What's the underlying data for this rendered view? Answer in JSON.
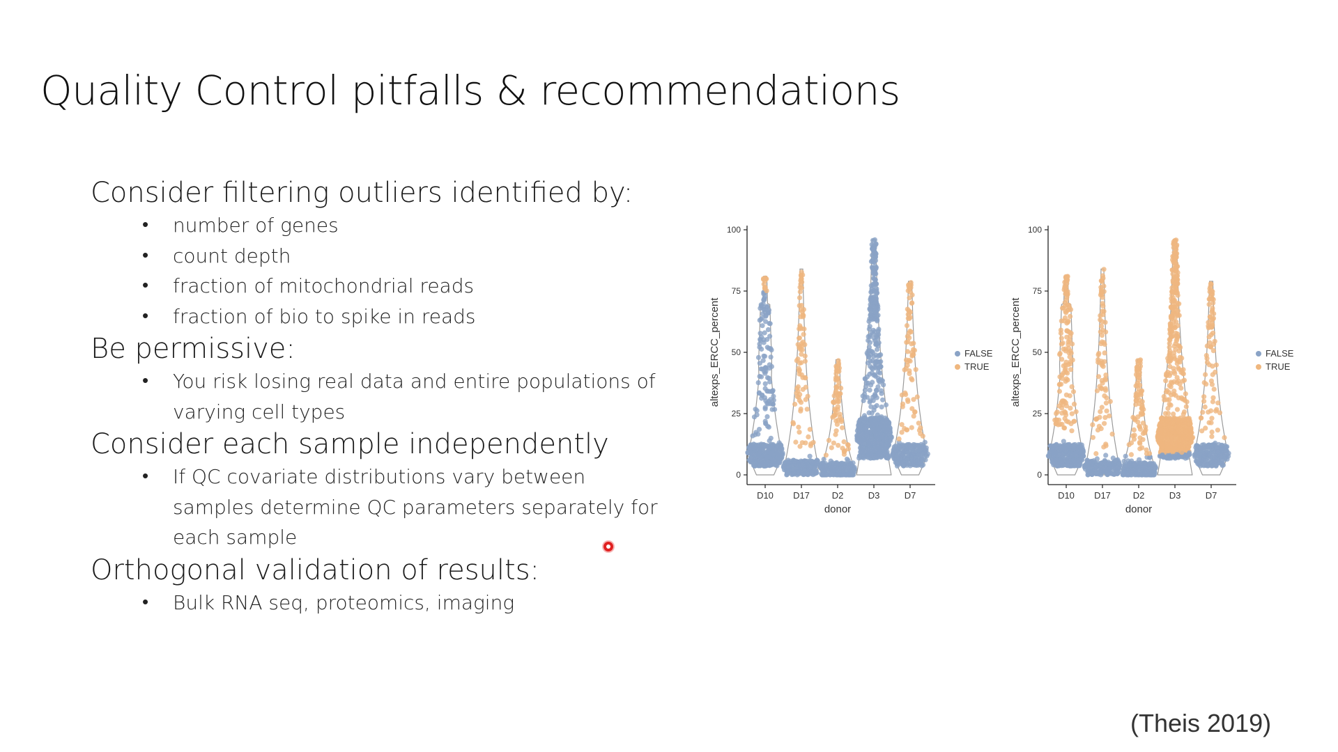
{
  "slide": {
    "title": "Quality Control pitfalls & recommendations",
    "sections": [
      {
        "heading": "Consider filtering outliers identified by:",
        "bullets": [
          "number of genes",
          "count depth",
          "fraction of mitochondrial reads",
          "fraction of bio to spike in reads"
        ]
      },
      {
        "heading": "Be permissive:",
        "bullets": [
          "You risk losing real data and entire populations of varying cell types"
        ]
      },
      {
        "heading": "Consider each sample independently",
        "bullets": [
          "If QC covariate distributions vary between samples determine QC parameters separately for each sample"
        ]
      },
      {
        "heading": "Orthogonal validation of results:",
        "bullets": [
          "Bulk RNA seq, proteomics, imaging"
        ]
      }
    ],
    "citation": "(Theis 2019)"
  },
  "colors": {
    "false_color": "#8aa3c6",
    "true_color": "#efb77f",
    "violin_line": "#9a9a9a"
  },
  "chart_data": [
    {
      "type": "scatter",
      "subtype": "violin-beeswarm",
      "categories": [
        "D10",
        "D17",
        "D2",
        "D3",
        "D7"
      ],
      "xlabel": "donor",
      "ylabel": "altexps_ERCC_percent",
      "ylim": [
        0,
        100
      ],
      "yticks": [
        0,
        25,
        50,
        75,
        100
      ],
      "legend": {
        "position": "right",
        "entries": [
          "FALSE",
          "TRUE"
        ]
      },
      "distributions": [
        {
          "category": "D10",
          "median": 8,
          "max": 81,
          "true_threshold": 75
        },
        {
          "category": "D17",
          "median": 3,
          "max": 84,
          "true_threshold": 8
        },
        {
          "category": "D2",
          "median": 2,
          "max": 47,
          "true_threshold": 8
        },
        {
          "category": "D3",
          "median": 15,
          "max": 96,
          "true_threshold": 97
        },
        {
          "category": "D7",
          "median": 8,
          "max": 79,
          "true_threshold": 14
        }
      ]
    },
    {
      "type": "scatter",
      "subtype": "violin-beeswarm",
      "categories": [
        "D10",
        "D17",
        "D2",
        "D3",
        "D7"
      ],
      "xlabel": "donor",
      "ylabel": "altexps_ERCC_percent",
      "ylim": [
        0,
        100
      ],
      "yticks": [
        0,
        25,
        50,
        75,
        100
      ],
      "legend": {
        "position": "right",
        "entries": [
          "FALSE",
          "TRUE"
        ]
      },
      "distributions": [
        {
          "category": "D10",
          "median": 8,
          "max": 81,
          "true_threshold": 15
        },
        {
          "category": "D17",
          "median": 3,
          "max": 84,
          "true_threshold": 8
        },
        {
          "category": "D2",
          "median": 2,
          "max": 47,
          "true_threshold": 8
        },
        {
          "category": "D3",
          "median": 15,
          "max": 96,
          "true_threshold": 9
        },
        {
          "category": "D7",
          "median": 8,
          "max": 79,
          "true_threshold": 14
        }
      ]
    }
  ]
}
